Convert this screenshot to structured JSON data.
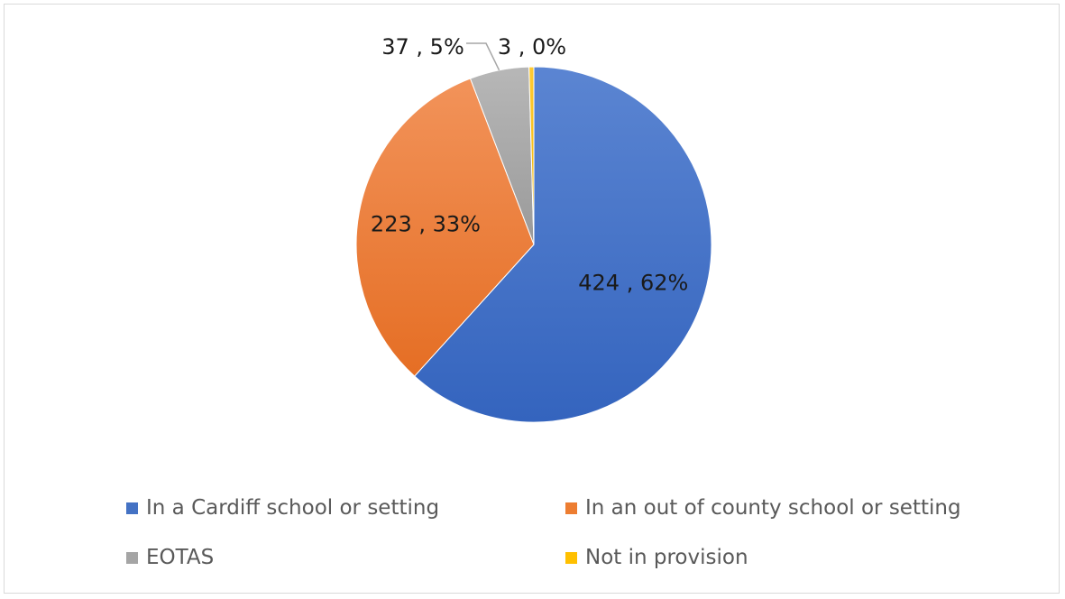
{
  "chart_data": {
    "type": "pie",
    "title": "",
    "categories": [
      "In a Cardiff school or setting",
      "In an out of county school or setting",
      "EOTAS",
      "Not in provision"
    ],
    "values": [
      424,
      223,
      37,
      3
    ],
    "percent_labels": [
      "62%",
      "33%",
      "5%",
      "0%"
    ],
    "data_labels": [
      "424 , 62%",
      "223 , 33%",
      "37 , 5%",
      "3 , 0%"
    ],
    "colors": [
      "#4472C4",
      "#ED7D31",
      "#A5A5A5",
      "#FFC000"
    ],
    "start_angle": "12 o'clock",
    "direction": "clockwise",
    "legend_position": "bottom"
  }
}
